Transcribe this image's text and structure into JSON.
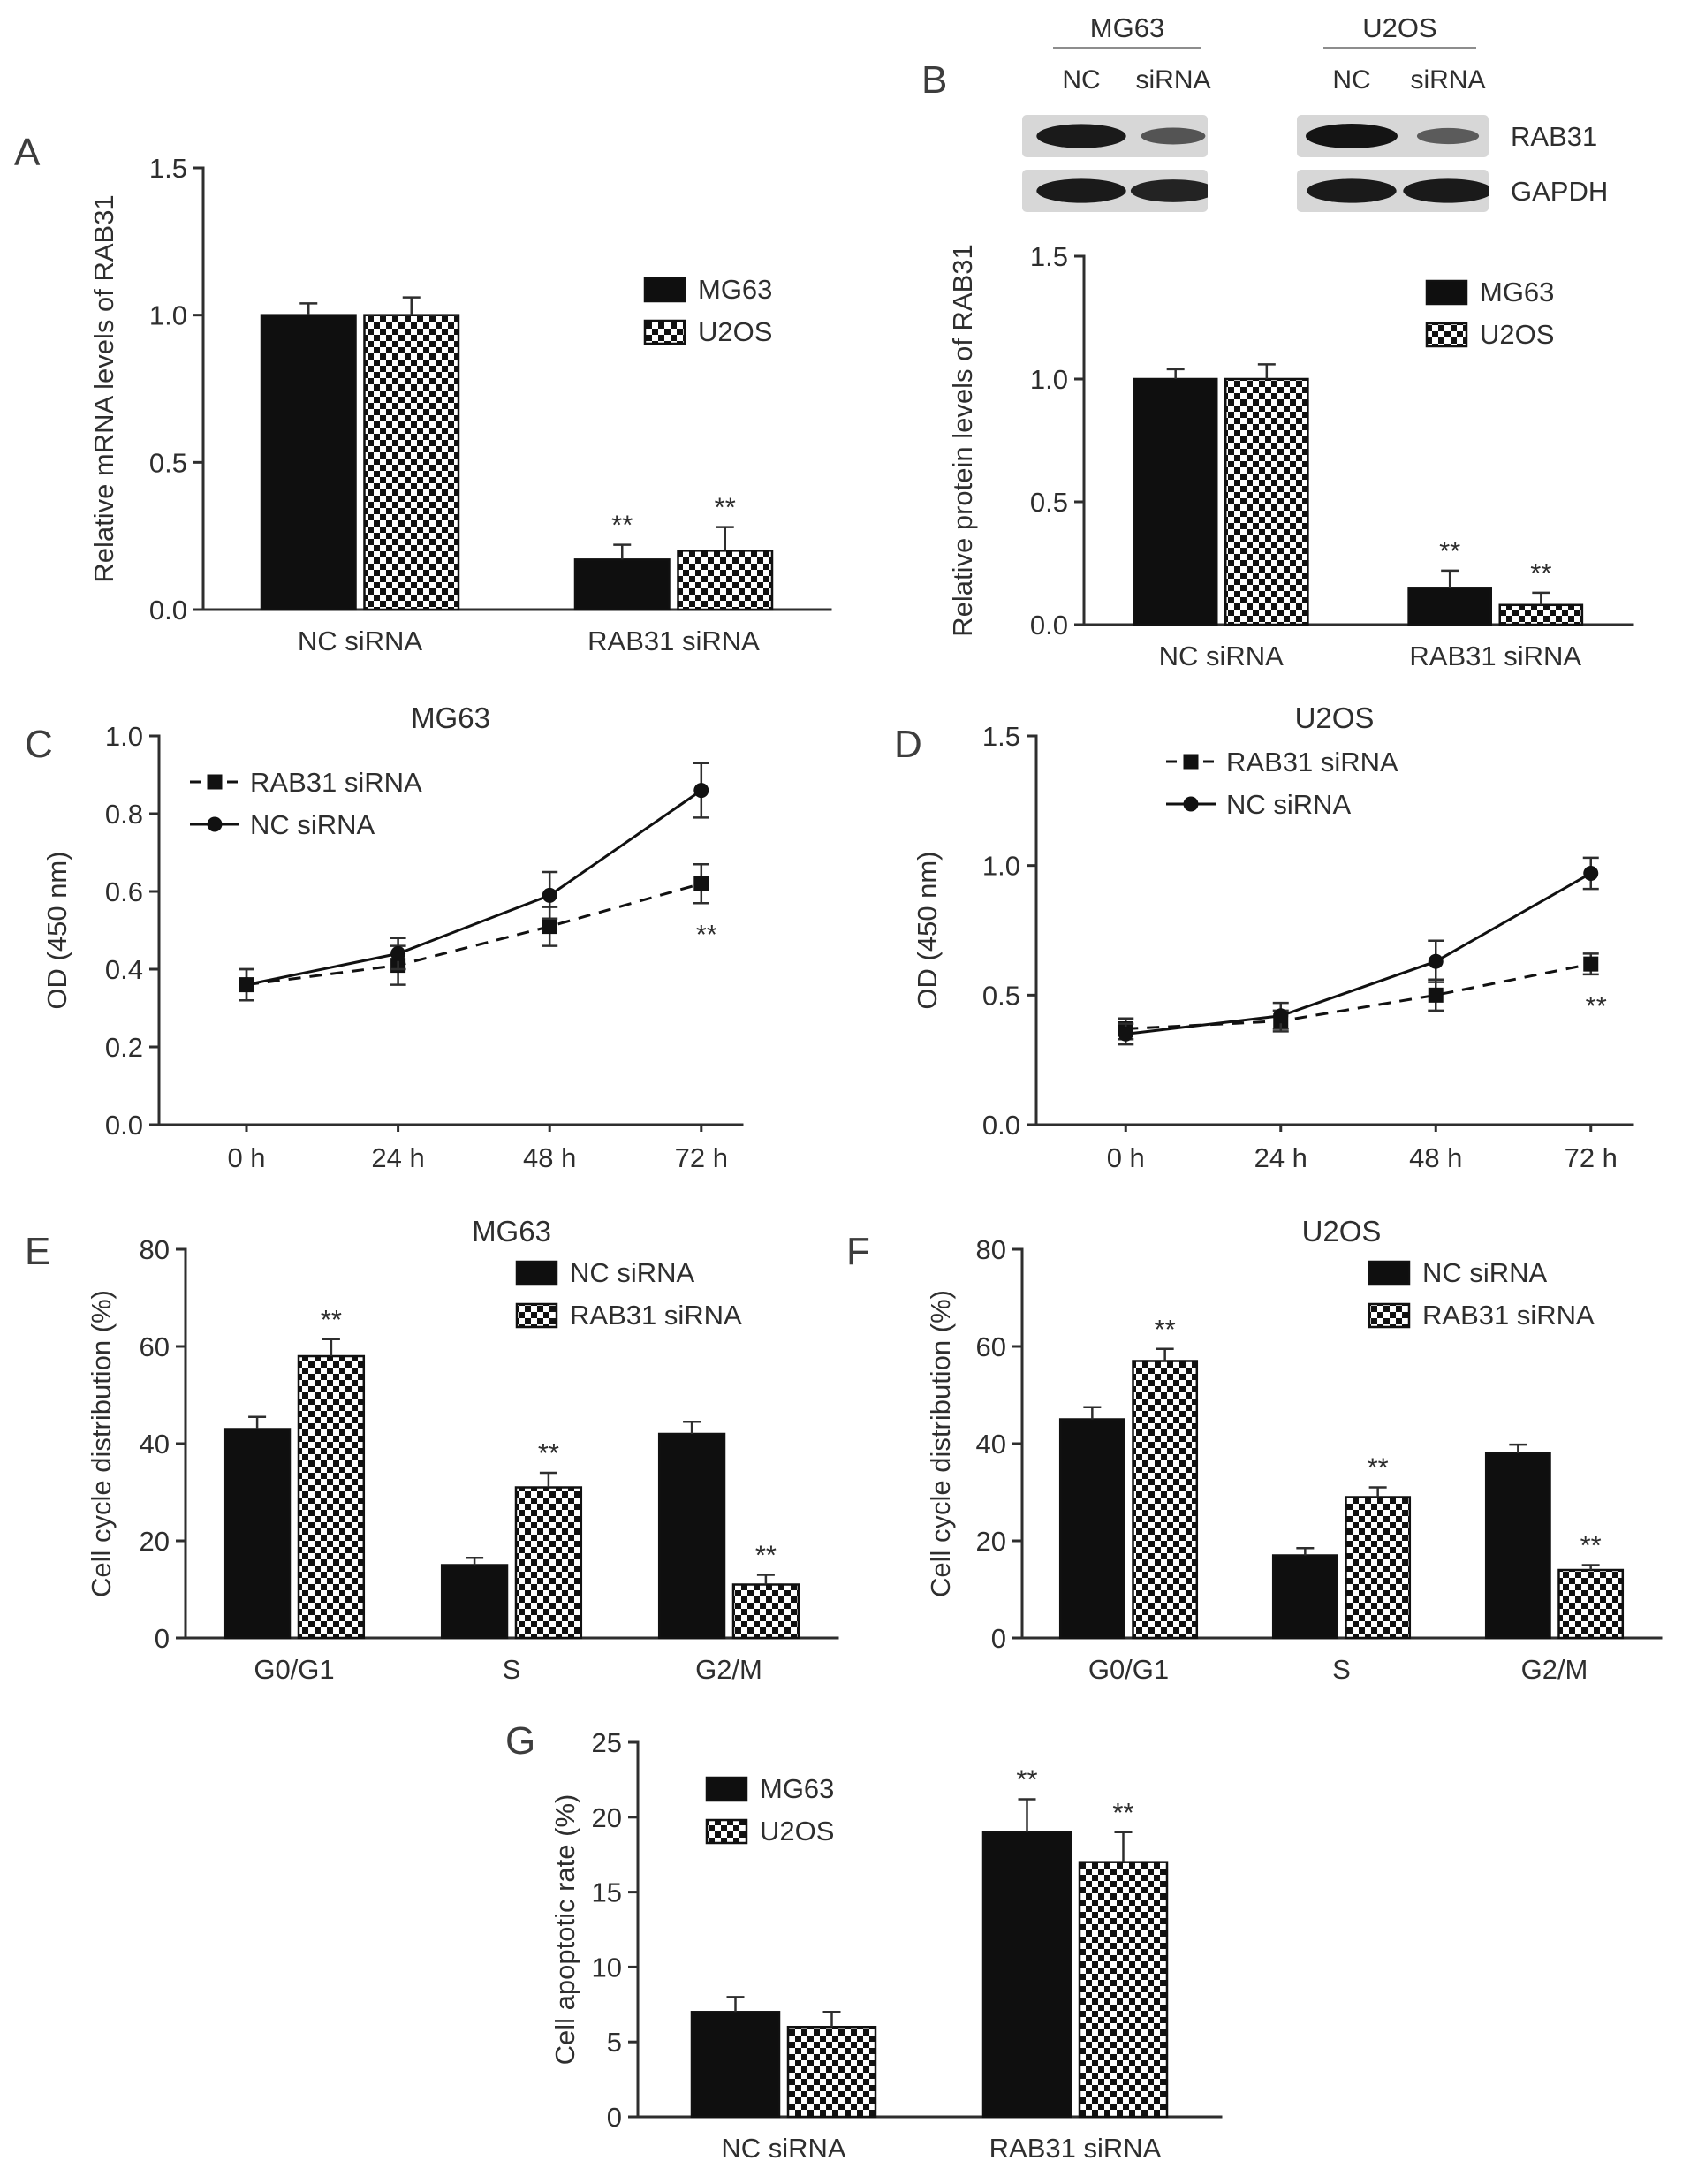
{
  "figure": {
    "panel_labels": {
      "A": "A",
      "B": "B",
      "C": "C",
      "D": "D",
      "E": "E",
      "F": "F",
      "G": "G"
    }
  },
  "colors": {
    "ink": "#2e2e2e",
    "bar_fill": "#0f0f0f",
    "blot_bg": "#d7d7d7",
    "checker": "#111111"
  },
  "blot": {
    "groups": [
      "MG63",
      "U2OS"
    ],
    "lanes": [
      "NC",
      "siRNA",
      "NC",
      "siRNA"
    ],
    "rows": [
      {
        "label": "RAB31",
        "intensities": [
          0.95,
          0.4,
          1.0,
          0.35
        ]
      },
      {
        "label": "GAPDH",
        "intensities": [
          0.95,
          0.85,
          0.95,
          0.95
        ]
      }
    ]
  },
  "chart_data": [
    {
      "panel": "A",
      "type": "bar",
      "ylabel": "Relative mRNA levels of RAB31",
      "ylim": [
        0,
        1.5
      ],
      "yticks": [
        0,
        0.5,
        1.0,
        1.5
      ],
      "ytick_labels": [
        "0.0",
        "0.5",
        "1.0",
        "1.5"
      ],
      "categories": [
        "NC siRNA",
        "RAB31 siRNA"
      ],
      "legend_position": "right",
      "series": [
        {
          "name": "MG63",
          "style": "solid",
          "values": [
            1.0,
            0.17
          ],
          "errors": [
            0.04,
            0.05
          ],
          "sig": [
            null,
            "**"
          ]
        },
        {
          "name": "U2OS",
          "style": "checker",
          "values": [
            1.0,
            0.2
          ],
          "errors": [
            0.06,
            0.08
          ],
          "sig": [
            null,
            "**"
          ]
        }
      ]
    },
    {
      "panel": "B",
      "type": "bar",
      "ylabel": "Relative protein levels of RAB31",
      "ylim": [
        0,
        1.5
      ],
      "yticks": [
        0,
        0.5,
        1.0,
        1.5
      ],
      "ytick_labels": [
        "0.0",
        "0.5",
        "1.0",
        "1.5"
      ],
      "categories": [
        "NC siRNA",
        "RAB31 siRNA"
      ],
      "legend_position": "top-right",
      "series": [
        {
          "name": "MG63",
          "style": "solid",
          "values": [
            1.0,
            0.15
          ],
          "errors": [
            0.04,
            0.07
          ],
          "sig": [
            null,
            "**"
          ]
        },
        {
          "name": "U2OS",
          "style": "checker",
          "values": [
            1.0,
            0.08
          ],
          "errors": [
            0.06,
            0.05
          ],
          "sig": [
            null,
            "**"
          ]
        }
      ]
    },
    {
      "panel": "C",
      "type": "line",
      "title": "MG63",
      "ylabel": "OD (450 nm)",
      "ylim": [
        0,
        1.0
      ],
      "yticks": [
        0,
        0.2,
        0.4,
        0.6,
        0.8,
        1.0
      ],
      "ytick_labels": [
        "0.0",
        "0.2",
        "0.4",
        "0.6",
        "0.8",
        "1.0"
      ],
      "x_categories": [
        "0 h",
        "24 h",
        "48 h",
        "72 h"
      ],
      "legend_position": "top-left",
      "series": [
        {
          "name": "RAB31 siRNA",
          "line": "dashed",
          "marker": "square",
          "values": [
            0.36,
            0.41,
            0.51,
            0.62
          ],
          "errors": [
            0.04,
            0.05,
            0.05,
            0.05
          ],
          "sig": [
            null,
            null,
            null,
            "**"
          ]
        },
        {
          "name": "NC siRNA",
          "line": "solid",
          "marker": "circle",
          "values": [
            0.36,
            0.44,
            0.59,
            0.86
          ],
          "errors": [
            0.04,
            0.04,
            0.06,
            0.07
          ],
          "sig": [
            null,
            null,
            null,
            null
          ]
        }
      ]
    },
    {
      "panel": "D",
      "type": "line",
      "title": "U2OS",
      "ylabel": "OD (450 nm)",
      "ylim": [
        0,
        1.5
      ],
      "yticks": [
        0,
        0.5,
        1.0,
        1.5
      ],
      "ytick_labels": [
        "0.0",
        "0.5",
        "1.0",
        "1.5"
      ],
      "x_categories": [
        "0 h",
        "24 h",
        "48 h",
        "72 h"
      ],
      "legend_position": "top-right",
      "series": [
        {
          "name": "RAB31 siRNA",
          "line": "dashed",
          "marker": "square",
          "values": [
            0.37,
            0.4,
            0.5,
            0.62
          ],
          "errors": [
            0.04,
            0.04,
            0.06,
            0.04
          ],
          "sig": [
            null,
            null,
            null,
            "**"
          ]
        },
        {
          "name": "NC siRNA",
          "line": "solid",
          "marker": "circle",
          "values": [
            0.35,
            0.42,
            0.63,
            0.97
          ],
          "errors": [
            0.04,
            0.05,
            0.08,
            0.06
          ],
          "sig": [
            null,
            null,
            null,
            null
          ]
        }
      ]
    },
    {
      "panel": "E",
      "type": "bar",
      "title": "MG63",
      "ylabel": "Cell cycle distribution (%)",
      "ylim": [
        0,
        80
      ],
      "yticks": [
        0,
        20,
        40,
        60,
        80
      ],
      "ytick_labels": [
        "0",
        "20",
        "40",
        "60",
        "80"
      ],
      "categories": [
        "G0/G1",
        "S",
        "G2/M"
      ],
      "legend_position": "top-right",
      "series": [
        {
          "name": "NC siRNA",
          "style": "solid",
          "values": [
            43,
            15,
            42
          ],
          "errors": [
            2.5,
            1.5,
            2.5
          ],
          "sig": [
            null,
            null,
            null
          ]
        },
        {
          "name": "RAB31 siRNA",
          "style": "checker",
          "values": [
            58,
            31,
            11
          ],
          "errors": [
            3.5,
            3,
            2
          ],
          "sig": [
            "**",
            "**",
            "**"
          ]
        }
      ]
    },
    {
      "panel": "F",
      "type": "bar",
      "title": "U2OS",
      "ylabel": "Cell cycle distribution (%)",
      "ylim": [
        0,
        80
      ],
      "yticks": [
        0,
        20,
        40,
        60,
        80
      ],
      "ytick_labels": [
        "0",
        "20",
        "40",
        "60",
        "80"
      ],
      "categories": [
        "G0/G1",
        "S",
        "G2/M"
      ],
      "legend_position": "top-right",
      "series": [
        {
          "name": "NC siRNA",
          "style": "solid",
          "values": [
            45,
            17,
            38
          ],
          "errors": [
            2.5,
            1.5,
            1.8
          ],
          "sig": [
            null,
            null,
            null
          ]
        },
        {
          "name": "RAB31 siRNA",
          "style": "checker",
          "values": [
            57,
            29,
            14
          ],
          "errors": [
            2.5,
            2,
            1
          ],
          "sig": [
            "**",
            "**",
            "**"
          ]
        }
      ]
    },
    {
      "panel": "G",
      "type": "bar",
      "ylabel": "Cell apoptotic rate (%)",
      "ylim": [
        0,
        25
      ],
      "yticks": [
        0,
        5,
        10,
        15,
        20,
        25
      ],
      "ytick_labels": [
        "0",
        "5",
        "10",
        "15",
        "20",
        "25"
      ],
      "categories": [
        "NC siRNA",
        "RAB31 siRNA"
      ],
      "legend_position": "top-left",
      "series": [
        {
          "name": "MG63",
          "style": "solid",
          "values": [
            7,
            19
          ],
          "errors": [
            1,
            2.2
          ],
          "sig": [
            null,
            "**"
          ]
        },
        {
          "name": "U2OS",
          "style": "checker",
          "values": [
            6,
            17
          ],
          "errors": [
            1,
            2
          ],
          "sig": [
            null,
            "**"
          ]
        }
      ]
    }
  ]
}
